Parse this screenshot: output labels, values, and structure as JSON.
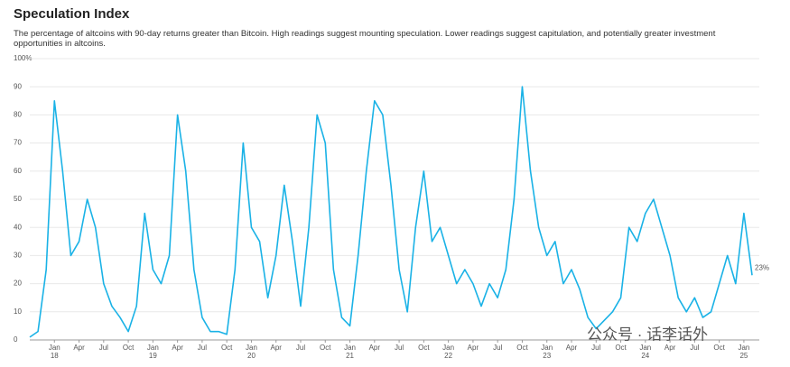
{
  "chart_data": {
    "type": "line",
    "title": "Speculation Index",
    "subtitle": "The percentage of altcoins with 90-day returns greater than Bitcoin. High readings suggest mounting speculation. Lower readings suggest capitulation, and potentially greater investment opportunities in altcoins.",
    "watermark": "公众号 · 话李话外",
    "x": [
      "2017-10",
      "2017-11",
      "2017-12",
      "2018-01",
      "2018-02",
      "2018-03",
      "2018-04",
      "2018-05",
      "2018-06",
      "2018-07",
      "2018-08",
      "2018-09",
      "2018-10",
      "2018-11",
      "2018-12",
      "2019-01",
      "2019-02",
      "2019-03",
      "2019-04",
      "2019-05",
      "2019-06",
      "2019-07",
      "2019-08",
      "2019-09",
      "2019-10",
      "2019-11",
      "2019-12",
      "2020-01",
      "2020-02",
      "2020-03",
      "2020-04",
      "2020-05",
      "2020-06",
      "2020-07",
      "2020-08",
      "2020-09",
      "2020-10",
      "2020-11",
      "2020-12",
      "2021-01",
      "2021-02",
      "2021-03",
      "2021-04",
      "2021-05",
      "2021-06",
      "2021-07",
      "2021-08",
      "2021-09",
      "2021-10",
      "2021-11",
      "2021-12",
      "2022-01",
      "2022-02",
      "2022-03",
      "2022-04",
      "2022-05",
      "2022-06",
      "2022-07",
      "2022-08",
      "2022-09",
      "2022-10",
      "2022-11",
      "2022-12",
      "2023-01",
      "2023-02",
      "2023-03",
      "2023-04",
      "2023-05",
      "2023-06",
      "2023-07",
      "2023-08",
      "2023-09",
      "2023-10",
      "2023-11",
      "2023-12",
      "2024-01",
      "2024-02",
      "2024-03",
      "2024-04",
      "2024-05",
      "2024-06",
      "2024-07",
      "2024-08",
      "2024-09",
      "2024-10",
      "2024-11",
      "2024-12",
      "2025-01",
      "2025-02"
    ],
    "series": [
      {
        "name": "Speculation Index",
        "color": "#1ab2e6",
        "values": [
          1,
          3,
          25,
          85,
          60,
          30,
          35,
          50,
          40,
          20,
          12,
          8,
          3,
          12,
          45,
          25,
          20,
          30,
          80,
          60,
          25,
          8,
          3,
          3,
          2,
          25,
          70,
          40,
          35,
          15,
          30,
          55,
          35,
          12,
          40,
          80,
          70,
          25,
          8,
          5,
          30,
          60,
          85,
          80,
          55,
          25,
          10,
          40,
          60,
          35,
          40,
          30,
          20,
          25,
          20,
          12,
          20,
          15,
          25,
          50,
          90,
          60,
          40,
          30,
          35,
          20,
          25,
          18,
          8,
          4,
          7,
          10,
          15,
          40,
          35,
          45,
          50,
          40,
          30,
          15,
          10,
          15,
          8,
          10,
          20,
          30,
          20,
          45,
          23
        ],
        "value_labels": [
          null,
          null,
          null,
          null,
          null,
          null,
          null,
          null,
          null,
          null,
          null,
          null,
          null,
          null,
          null,
          null,
          null,
          null,
          null,
          null,
          null,
          null,
          null,
          null,
          null,
          null,
          null,
          null,
          null,
          null,
          null,
          null,
          null,
          null,
          null,
          null,
          null,
          null,
          null,
          null,
          null,
          null,
          null,
          null,
          null,
          null,
          null,
          null,
          null,
          null,
          null,
          null,
          null,
          null,
          null,
          null,
          null,
          null,
          null,
          null,
          null,
          null,
          null,
          null,
          null,
          null,
          null,
          null,
          null,
          null,
          null,
          null,
          null,
          null,
          null,
          null,
          null,
          null,
          null,
          null,
          null,
          null,
          null,
          null,
          null,
          null,
          null,
          null,
          "23%"
        ]
      }
    ],
    "xlim": [
      "2017-10",
      "2025-02"
    ],
    "xticks": [
      {
        "value": "2018-01",
        "label": "Jan",
        "year": "18"
      },
      {
        "value": "2018-04",
        "label": "Apr"
      },
      {
        "value": "2018-07",
        "label": "Jul"
      },
      {
        "value": "2018-10",
        "label": "Oct"
      },
      {
        "value": "2019-01",
        "label": "Jan",
        "year": "19"
      },
      {
        "value": "2019-04",
        "label": "Apr"
      },
      {
        "value": "2019-07",
        "label": "Jul"
      },
      {
        "value": "2019-10",
        "label": "Oct"
      },
      {
        "value": "2020-01",
        "label": "Jan",
        "year": "20"
      },
      {
        "value": "2020-04",
        "label": "Apr"
      },
      {
        "value": "2020-07",
        "label": "Jul"
      },
      {
        "value": "2020-10",
        "label": "Oct"
      },
      {
        "value": "2021-01",
        "label": "Jan",
        "year": "21"
      },
      {
        "value": "2021-04",
        "label": "Apr"
      },
      {
        "value": "2021-07",
        "label": "Jul"
      },
      {
        "value": "2021-10",
        "label": "Oct"
      },
      {
        "value": "2022-01",
        "label": "Jan",
        "year": "22"
      },
      {
        "value": "2022-04",
        "label": "Apr"
      },
      {
        "value": "2022-07",
        "label": "Jul"
      },
      {
        "value": "2022-10",
        "label": "Oct"
      },
      {
        "value": "2023-01",
        "label": "Jan",
        "year": "23"
      },
      {
        "value": "2023-04",
        "label": "Apr"
      },
      {
        "value": "2023-07",
        "label": "Jul"
      },
      {
        "value": "2023-10",
        "label": "Oct"
      },
      {
        "value": "2024-01",
        "label": "Jan",
        "year": "24"
      },
      {
        "value": "2024-04",
        "label": "Apr"
      },
      {
        "value": "2024-07",
        "label": "Jul"
      },
      {
        "value": "2024-10",
        "label": "Oct"
      },
      {
        "value": "2025-01",
        "label": "Jan",
        "year": "25"
      }
    ],
    "ylim": [
      0,
      100
    ],
    "yticks": [
      0,
      10,
      20,
      30,
      40,
      50,
      60,
      70,
      80,
      90,
      {
        "value": 100,
        "label": "100%"
      }
    ],
    "grid": true
  }
}
